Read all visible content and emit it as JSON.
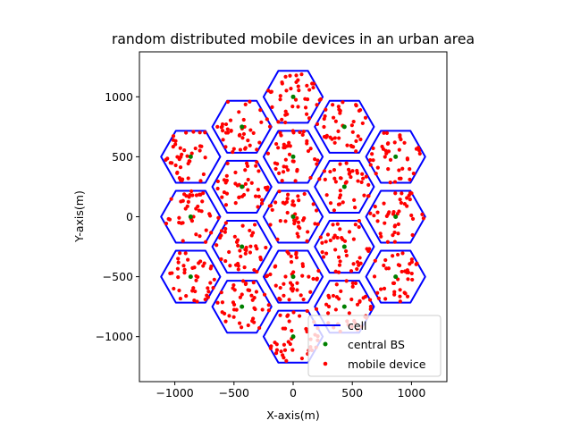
{
  "chart_data": {
    "type": "scatter",
    "title": "random distributed mobile devices in an urban area",
    "xlabel": "X-axis(m)",
    "ylabel": "Y-axis(m)",
    "xlim": [
      -1299,
      1299
    ],
    "ylim": [
      -1375,
      1375
    ],
    "xticks": [
      -1000,
      -500,
      0,
      500,
      1000
    ],
    "yticks": [
      -1000,
      -500,
      0,
      500,
      1000
    ],
    "xtick_labels": [
      "−1000",
      "−500",
      "0",
      "500",
      "1000"
    ],
    "ytick_labels": [
      "−1000",
      "−500",
      "0",
      "500",
      "1000"
    ],
    "grid": false,
    "legend_position": "lower-right",
    "hex_radius": 250,
    "cell_centers": [
      {
        "x": 0,
        "y": 0
      },
      {
        "x": 433,
        "y": 250
      },
      {
        "x": 0,
        "y": 500
      },
      {
        "x": -433,
        "y": 250
      },
      {
        "x": -433,
        "y": -250
      },
      {
        "x": 0,
        "y": -500
      },
      {
        "x": 433,
        "y": -250
      },
      {
        "x": 866,
        "y": 500
      },
      {
        "x": 866,
        "y": 0
      },
      {
        "x": 866,
        "y": -500
      },
      {
        "x": 433,
        "y": -750
      },
      {
        "x": -433,
        "y": -750
      },
      {
        "x": -866,
        "y": -500
      },
      {
        "x": -866,
        "y": 0
      },
      {
        "x": -866,
        "y": 500
      },
      {
        "x": -433,
        "y": 750
      },
      {
        "x": 0,
        "y": 1000
      },
      {
        "x": 433,
        "y": 750
      },
      {
        "x": 0,
        "y": -1000
      }
    ],
    "devices_per_cell": 40,
    "series": [
      {
        "name": "cell",
        "kind": "line",
        "color": "#0000ff"
      },
      {
        "name": "central BS",
        "kind": "marker",
        "color": "#008000"
      },
      {
        "name": "mobile device",
        "kind": "marker",
        "color": "#ff0000"
      }
    ]
  }
}
